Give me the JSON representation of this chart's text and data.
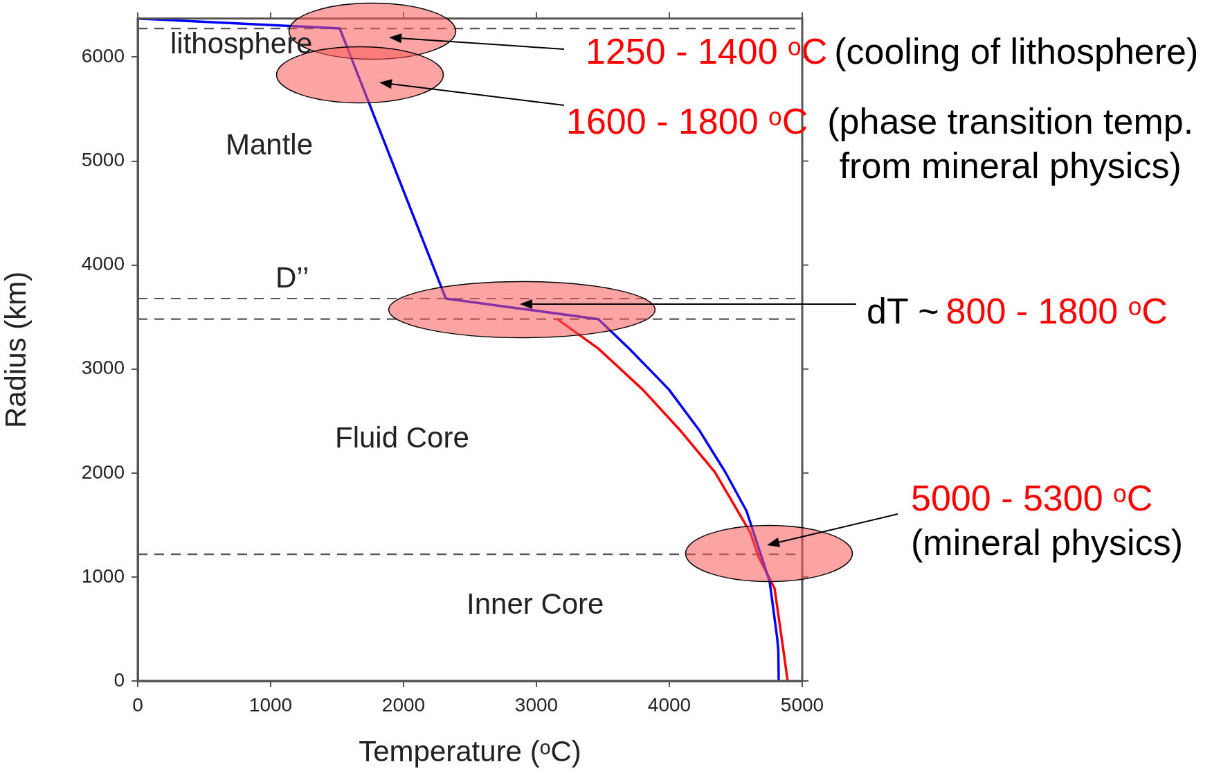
{
  "chart_data": {
    "type": "line",
    "xlabel": "Temperature (ᵒC)",
    "ylabel": "Radius (km)",
    "xlim": [
      0,
      5000
    ],
    "ylim": [
      0,
      6371
    ],
    "xticks": [
      0,
      1000,
      2000,
      3000,
      4000,
      5000
    ],
    "yticks": [
      0,
      1000,
      2000,
      3000,
      4000,
      5000,
      6000
    ],
    "grid": false,
    "marker": "none",
    "line_style": "solid",
    "series": [
      {
        "color": "#0000ff",
        "x": [
          0,
          1520,
          2318,
          3466,
          3703,
          3995,
          4224,
          4422,
          4581,
          4755,
          4811,
          4820,
          4823
        ],
        "values": [
          6371,
          6276,
          3678,
          3480,
          3190,
          2806,
          2414,
          2007,
          1634,
          955,
          418,
          292,
          0
        ]
      },
      {
        "color": "#ff0000",
        "x": [
          3159,
          3464,
          3797,
          4089,
          4344,
          4609,
          4672,
          4792,
          4859,
          4890
        ],
        "values": [
          3479,
          3199,
          2806,
          2400,
          2007,
          1428,
          1192,
          889,
          290,
          0
        ]
      }
    ],
    "ref_lines": [
      {
        "axis": "y",
        "value": 6276,
        "color": "#555555",
        "line_style": "dashed"
      },
      {
        "axis": "y",
        "value": 3678,
        "color": "#555555",
        "line_style": "dashed"
      },
      {
        "axis": "y",
        "value": 3480,
        "color": "#555555",
        "line_style": "dashed"
      },
      {
        "axis": "y",
        "value": 1218,
        "color": "#555555",
        "line_style": "dashed"
      }
    ],
    "annotations": [
      "1250 - 1400 ᵒC",
      "1600 - 1800 ᵒC",
      "800 - 1800 ᵒC",
      "5000 - 5300 ᵒC",
      "(cooling of lithosphere)",
      "(phase transition temp. from mineral physics)",
      "dT ~",
      "(mineral physics)",
      "lithosphere",
      "Mantle",
      "D’’",
      "Fluid Core",
      "Inner Core"
    ]
  }
}
